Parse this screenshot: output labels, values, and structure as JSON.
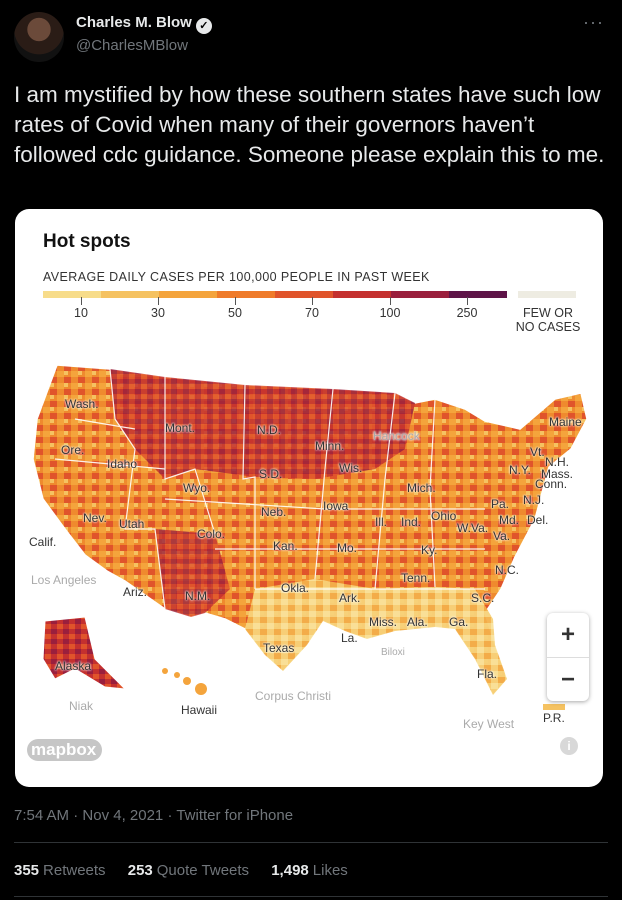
{
  "author": {
    "name": "Charles M. Blow",
    "handle": "@CharlesMBlow",
    "verified_icon": "✓"
  },
  "more_icon": "···",
  "tweet": {
    "text": "I am mystified by how these southern states have such low rates of Covid when many of their governors haven’t followed cdc guidance. Someone please explain this to me."
  },
  "card": {
    "title": "Hot spots",
    "legend_title": "AVERAGE DAILY CASES PER 100,000 PEOPLE IN PAST WEEK",
    "legend_ticks": [
      "10",
      "30",
      "50",
      "70",
      "100",
      "250"
    ],
    "legend_none": "FEW OR NO CASES",
    "legend_colors": [
      "#f7dc8a",
      "#f5c261",
      "#f4a43c",
      "#ef7b2a",
      "#e0542b",
      "#c4302f",
      "#9a1f3d",
      "#5e1448"
    ],
    "legend_none_color": "#eeece2",
    "map_labels": {
      "wash": "Wash.",
      "ore": "Ore.",
      "idaho": "Idaho",
      "mont": "Mont.",
      "nd": "N.D.",
      "minn": "Minn.",
      "hancock": "Hancock",
      "maine": "Maine",
      "vt": "Vt.",
      "nh": "N.H.",
      "ny": "N.Y.",
      "mass": "Mass.",
      "conn": "Conn.",
      "wis": "Wis.",
      "sd": "S.D.",
      "wyo": "Wyo.",
      "mich": "Mich.",
      "nj": "N.J.",
      "pa": "Pa.",
      "iowa": "Iowa",
      "nev": "Nev.",
      "neb": "Neb.",
      "md": "Md.",
      "del": "Del.",
      "ill": "Ill.",
      "ind": "Ind.",
      "ohio": "Ohio",
      "utah": "Utah",
      "wva": "W.Va.",
      "va": "Va.",
      "calif": "Calif.",
      "colo": "Colo.",
      "kan": "Kan.",
      "mo": "Mo.",
      "ky": "Ky.",
      "nc": "N.C.",
      "la_city": "Los Angeles",
      "tenn": "Tenn.",
      "ariz": "Ariz.",
      "nm": "N.M.",
      "okla": "Okla.",
      "ark": "Ark.",
      "sc": "S.C.",
      "miss": "Miss.",
      "ala": "Ala.",
      "ga": "Ga.",
      "la": "La.",
      "biloxi": "Biloxi",
      "texas": "Texas",
      "alaska": "Alaska",
      "fla": "Fla.",
      "corpus": "Corpus Christi",
      "niak": "Niak",
      "hawaii": "Hawaii",
      "key_west": "Key West",
      "pr": "P.R."
    },
    "zoom_in": "+",
    "zoom_out": "−",
    "mapbox": "mapbox",
    "info_icon": "i"
  },
  "meta": {
    "time": "7:54 AM",
    "date": "Nov 4, 2021",
    "source": "Twitter for iPhone",
    "separator": " · "
  },
  "stats": {
    "retweets_count": "355",
    "retweets_label": "Retweets",
    "quotes_count": "253",
    "quotes_label": "Quote Tweets",
    "likes_count": "1,498",
    "likes_label": "Likes"
  }
}
